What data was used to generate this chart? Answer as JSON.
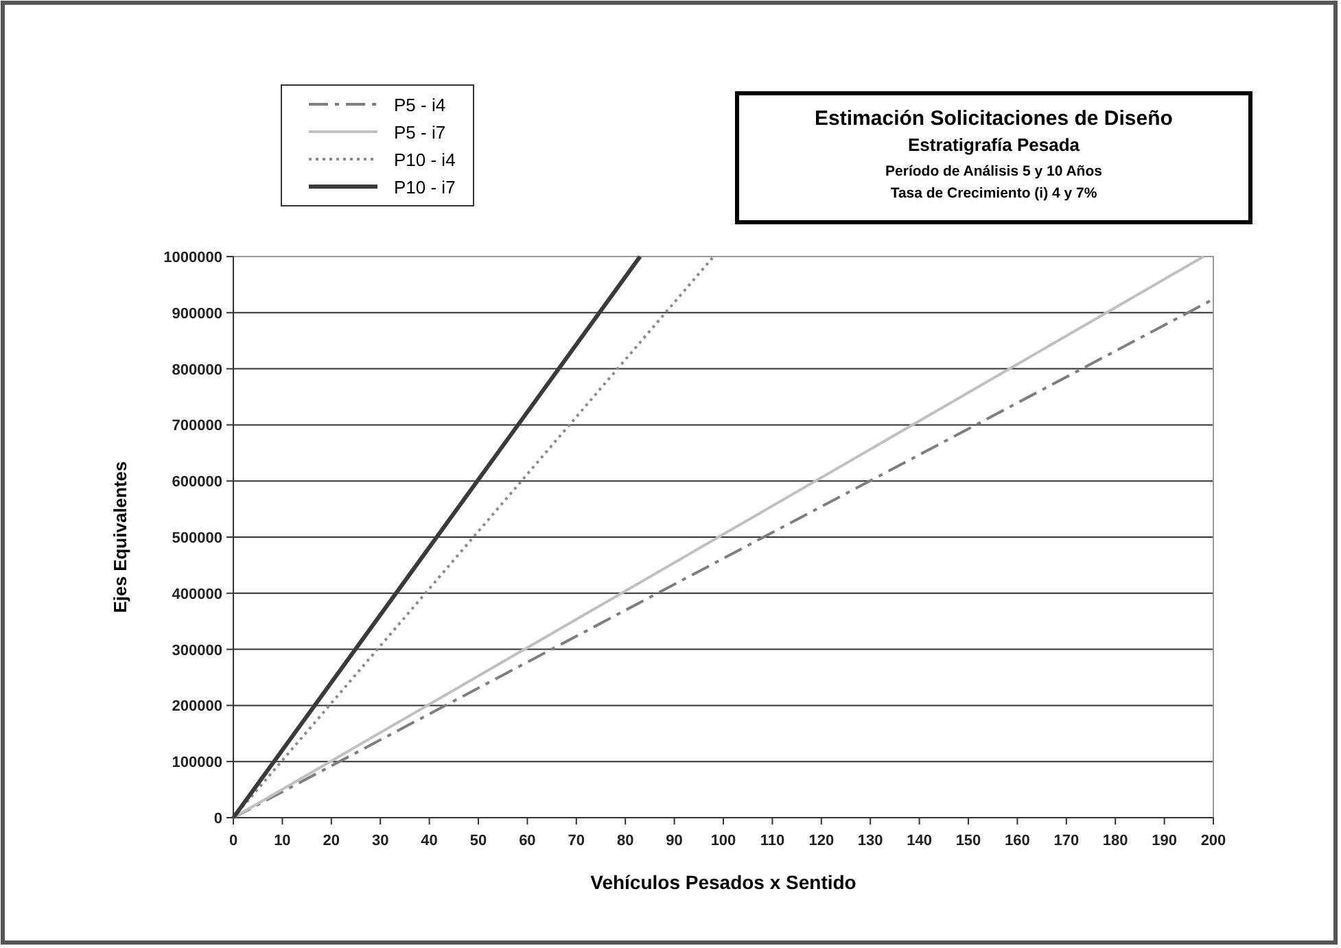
{
  "chart_data": {
    "type": "line",
    "title": "Estimación Solicitaciones de Diseño",
    "subtitle": "Estratigrafía Pesada",
    "annotations": [
      "Período de Análisis 5 y 10 Años",
      "Tasa de Crecimiento (i) 4 y 7%"
    ],
    "xlabel": "Vehículos Pesados x Sentido",
    "ylabel": "Ejes Equivalentes",
    "xlim": [
      0,
      200
    ],
    "xticks": [
      0,
      10,
      20,
      30,
      40,
      50,
      60,
      70,
      80,
      90,
      100,
      110,
      120,
      130,
      140,
      150,
      160,
      170,
      180,
      190,
      200
    ],
    "ylim": [
      0,
      1000000
    ],
    "yticks": [
      0,
      100000,
      200000,
      300000,
      400000,
      500000,
      600000,
      700000,
      800000,
      900000,
      1000000
    ],
    "grid": "y",
    "legend": "top left",
    "marker": "none",
    "series": [
      {
        "name": "P5 - i4",
        "color": "#7f7f7f",
        "line_style": "dashed",
        "x": [
          0,
          200
        ],
        "values": [
          0,
          924000
        ]
      },
      {
        "name": "P5 - i7",
        "color": "#c0c0c0",
        "line_style": "solid",
        "x": [
          0,
          198
        ],
        "values": [
          0,
          1000000
        ]
      },
      {
        "name": "P10 - i4",
        "color": "#8c8c8c",
        "line_style": "dotted",
        "x": [
          0,
          98
        ],
        "values": [
          0,
          1000000
        ]
      },
      {
        "name": "P10 - i7",
        "color": "#3a3a3a",
        "line_style": "solid",
        "x": [
          0,
          83
        ],
        "values": [
          0,
          1000000
        ]
      }
    ]
  }
}
